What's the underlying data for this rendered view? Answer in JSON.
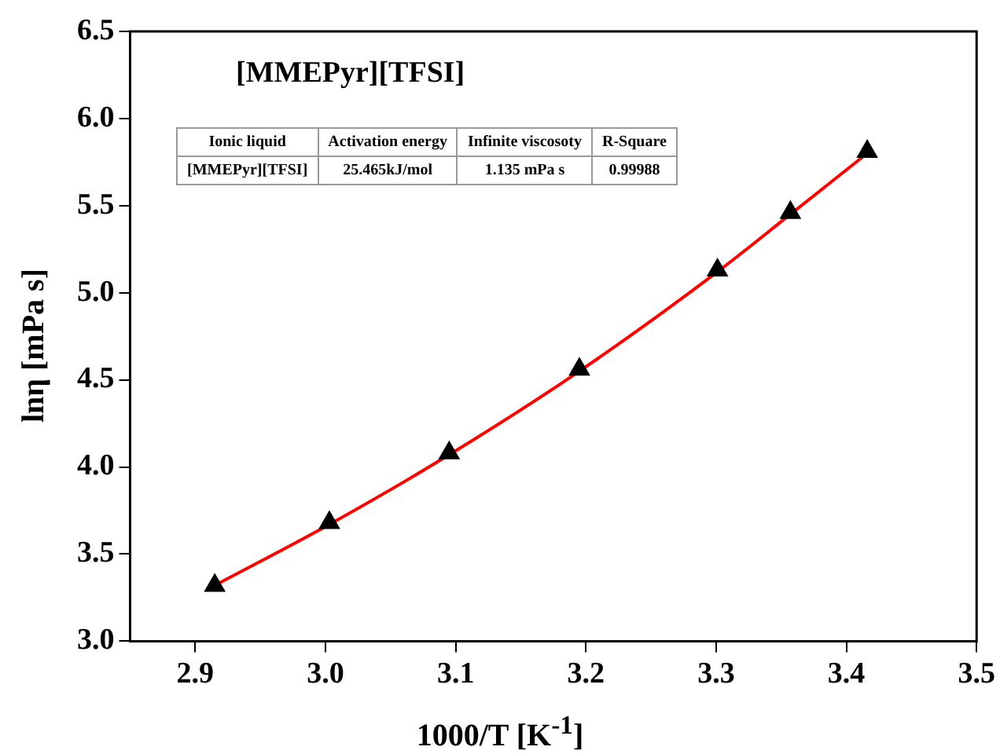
{
  "chart_data": {
    "type": "scatter",
    "xlabel": "1000/T [K$^{-1}$]",
    "ylabel": "lnη [mPa s]",
    "annotations": [
      "[MMEPyr][TFSI]",
      "Ionic liquid",
      "Activation energy",
      "Infinite viscosoty",
      "R-Square",
      "[MMEPyr][TFSI]",
      "25.465kJ/mol",
      "1.135 mPa s",
      "0.99988"
    ],
    "series": [
      {
        "color": "#000000",
        "marker": "triangle",
        "x": [
          2.915,
          3.003,
          3.095,
          3.195,
          3.301,
          3.357,
          3.416
        ],
        "values": [
          3.32,
          3.68,
          4.08,
          4.56,
          5.13,
          5.46,
          5.81
        ]
      },
      {
        "type": "line",
        "color": "#ff0000",
        "marker": "none",
        "x": [
          2.915,
          3.003,
          3.095,
          3.195,
          3.301,
          3.357,
          3.416
        ],
        "values": [
          3.32,
          3.67,
          4.07,
          4.55,
          5.12,
          5.45,
          5.8
        ]
      }
    ],
    "xlim": [
      2.85,
      3.5
    ],
    "xticks": [
      2.9,
      {
        "value": 3,
        "label": "3.0"
      },
      3.1,
      3.2,
      3.3,
      3.4,
      3.5
    ],
    "ylim": [
      3.0,
      6.5
    ],
    "yticks": [
      {
        "value": 3,
        "label": "3.0"
      },
      3.5,
      {
        "value": 4,
        "label": "4.0"
      },
      4.5,
      {
        "value": 5,
        "label": "5.0"
      },
      5.5,
      {
        "value": 6,
        "label": "6.0"
      },
      6.5
    ],
    "grid": false,
    "legend": false
  }
}
